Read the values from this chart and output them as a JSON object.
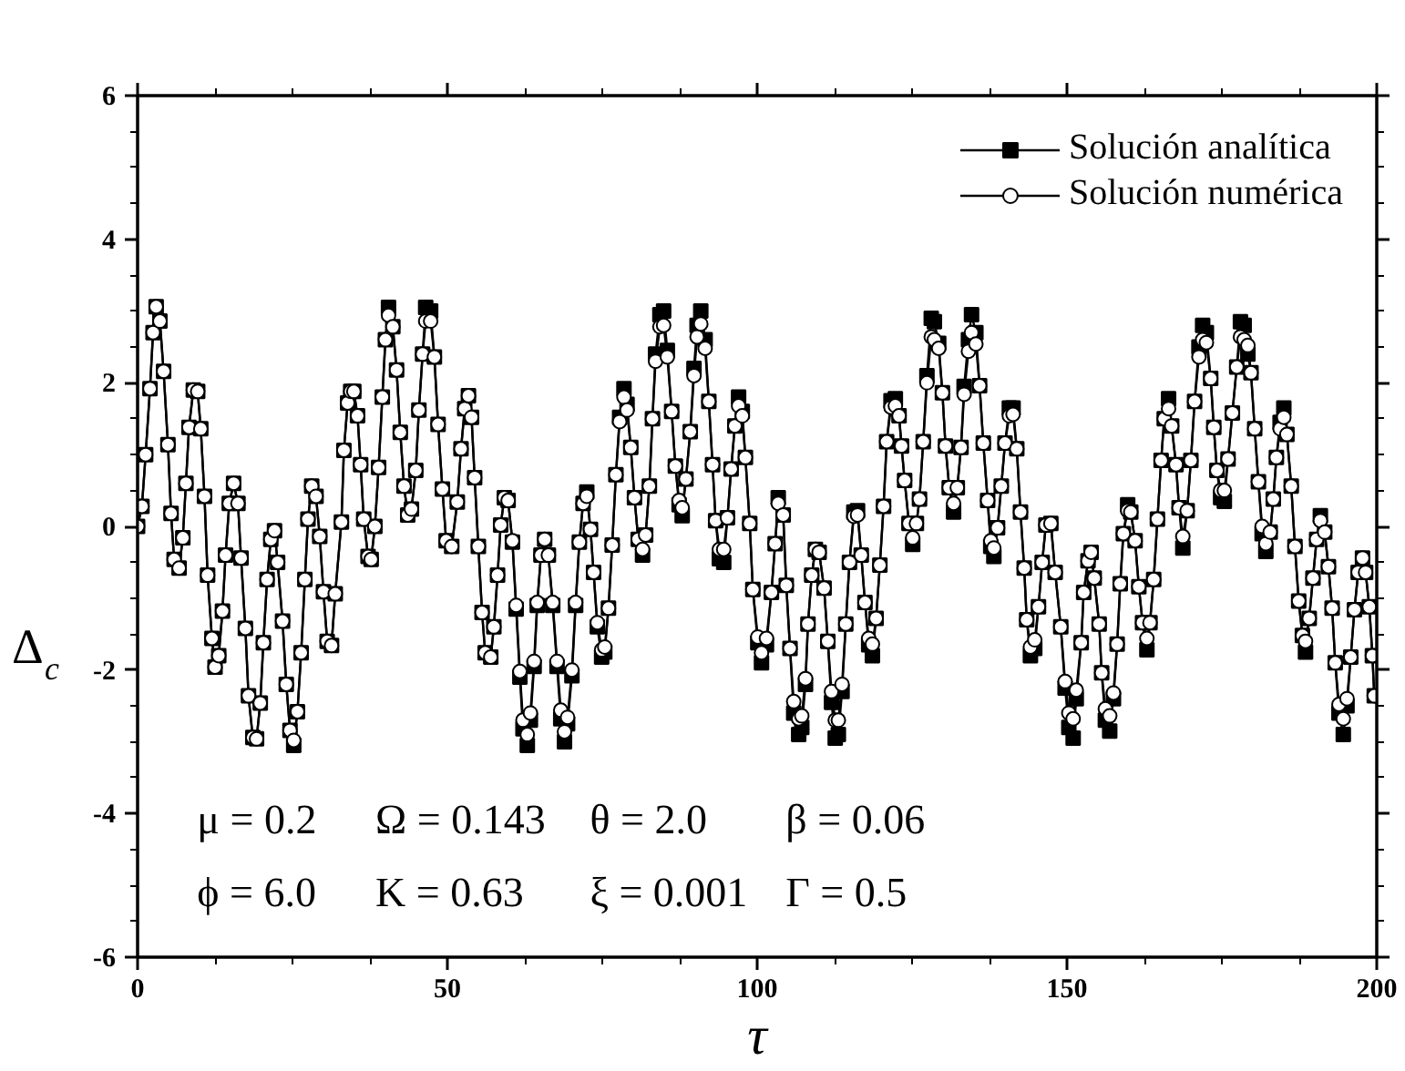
{
  "chart_data": {
    "type": "line",
    "xlabel": "τ",
    "ylabel": "Δ$_{c}$",
    "xlim": [
      0,
      200
    ],
    "ylim": [
      -6,
      6
    ],
    "xticks": [
      0,
      {
        "value": 12.5,
        "label": null
      },
      {
        "value": 25,
        "label": null
      },
      {
        "value": 37.5,
        "label": null
      },
      50,
      {
        "value": 62.5,
        "label": null
      },
      {
        "value": 75,
        "label": null
      },
      {
        "value": 87.5,
        "label": null
      },
      100,
      {
        "value": 112.5,
        "label": null
      },
      {
        "value": 125,
        "label": null
      },
      {
        "value": 137.5,
        "label": null
      },
      150,
      {
        "value": 162.5,
        "label": null
      },
      {
        "value": 175,
        "label": null
      },
      {
        "value": 187.5,
        "label": null
      },
      200
    ],
    "yticks": [
      -6,
      {
        "value": -5.5,
        "label": null
      },
      {
        "value": -5,
        "label": null
      },
      {
        "value": -4.5,
        "label": null
      },
      -4,
      {
        "value": -3.5,
        "label": null
      },
      {
        "value": -3,
        "label": null
      },
      {
        "value": -2.5,
        "label": null
      },
      -2,
      {
        "value": -1.5,
        "label": null
      },
      {
        "value": -1,
        "label": null
      },
      {
        "value": -0.5,
        "label": null
      },
      0,
      {
        "value": 0.5,
        "label": null
      },
      {
        "value": 1,
        "label": null
      },
      {
        "value": 1.5,
        "label": null
      },
      2,
      {
        "value": 2.5,
        "label": null
      },
      {
        "value": 3,
        "label": null
      },
      {
        "value": 3.5,
        "label": null
      },
      4,
      {
        "value": 4.5,
        "label": null
      },
      {
        "value": 5,
        "label": null
      },
      {
        "value": 5.5,
        "label": null
      },
      6
    ],
    "grid": false,
    "legend": "top right",
    "line_style": "solid",
    "annotations": [
      "μ = 0.2",
      "Ω = 0.143",
      "θ = 2.0",
      "β = 0.06",
      "ϕ = 6.0",
      "K = 0.63",
      "ξ = 0.001",
      "Γ = 0.5"
    ],
    "x": [
      0,
      0.7,
      1.3,
      2.0,
      2.5,
      3.0,
      3.6,
      4.2,
      4.9,
      5.4,
      5.9,
      6.7,
      7.3,
      7.8,
      8.3,
      9.0,
      9.7,
      10.2,
      10.8,
      11.3,
      12.0,
      12.5,
      13.1,
      13.7,
      14.2,
      14.8,
      15.5,
      16.2,
      16.7,
      17.4,
      17.9,
      18.6,
      19.2,
      19.8,
      20.3,
      20.9,
      21.5,
      22.1,
      22.6,
      23.4,
      24.0,
      24.6,
      25.2,
      25.8,
      26.4,
      27.0,
      27.5,
      28.1,
      28.8,
      29.4,
      30.0,
      30.6,
      31.3,
      31.9,
      32.9,
      33.3,
      33.9,
      34.4,
      34.9,
      35.5,
      36.0,
      36.5,
      37.2,
      37.7,
      38.3,
      38.9,
      39.5,
      40.0,
      40.5,
      41.2,
      41.8,
      42.4,
      43.0,
      43.6,
      44.2,
      44.9,
      45.4,
      46.0,
      46.5,
      47.3,
      47.9,
      48.5,
      49.2,
      49.8,
      50.7,
      51.6,
      52.2,
      52.8,
      53.4,
      53.9,
      54.4,
      55.0,
      55.6,
      56.1,
      57.0,
      57.5,
      58.1,
      58.6,
      59.2,
      59.8,
      60.5,
      61.1,
      61.7,
      62.2,
      62.9,
      63.4,
      64.0,
      64.5,
      65.1,
      65.7,
      66.3,
      67.0,
      67.7,
      68.3,
      68.9,
      69.4,
      70.1,
      70.7,
      71.3,
      71.9,
      72.5,
      73.1,
      73.6,
      74.2,
      74.9,
      75.4,
      76.0,
      76.6,
      77.2,
      77.8,
      78.5,
      79.0,
      79.6,
      80.2,
      80.8,
      81.5,
      82.0,
      82.6,
      83.1,
      83.6,
      84.3,
      84.9,
      85.5,
      86.2,
      86.8,
      87.4,
      87.9,
      88.5,
      89.2,
      89.8,
      90.3,
      90.9,
      91.6,
      92.2,
      92.8,
      93.3,
      93.9,
      94.6,
      95.2,
      95.8,
      96.4,
      97.0,
      97.6,
      98.1,
      98.8,
      99.3,
      100.1,
      100.7,
      101.5,
      102.3,
      102.9,
      103.4,
      104.2,
      104.7,
      105.3,
      105.9,
      106.7,
      107.2,
      107.8,
      108.2,
      108.8,
      109.4,
      110.0,
      110.8,
      111.4,
      112.0,
      112.6,
      113.1,
      113.7,
      114.3,
      114.9,
      115.6,
      116.2,
      116.8,
      117.4,
      118.0,
      118.6,
      119.2,
      119.8,
      120.4,
      120.9,
      121.6,
      122.3,
      122.9,
      123.3,
      123.8,
      124.5,
      125.1,
      125.7,
      126.2,
      126.8,
      127.4,
      128.1,
      128.6,
      129.3,
      129.9,
      130.4,
      131.0,
      131.7,
      132.3,
      132.9,
      133.4,
      134.1,
      134.6,
      135.3,
      135.9,
      136.5,
      137.2,
      137.7,
      138.2,
      138.8,
      139.4,
      140.0,
      140.7,
      141.3,
      141.9,
      142.5,
      143.1,
      143.5,
      144.1,
      144.8,
      145.4,
      146.0,
      146.6,
      147.4,
      148.1,
      149.0,
      149.7,
      150.3,
      151.0,
      151.5,
      152.3,
      152.7,
      153.4,
      153.9,
      154.4,
      155.2,
      155.6,
      156.2,
      156.9,
      157.5,
      158.1,
      158.6,
      159.1,
      159.8,
      160.3,
      161.0,
      161.6,
      162.2,
      162.9,
      163.4,
      164.0,
      164.6,
      165.2,
      165.7,
      166.4,
      166.9,
      167.6,
      168.1,
      168.7,
      169.4,
      170.0,
      170.6,
      171.3,
      171.9,
      172.5,
      173.2,
      173.7,
      174.2,
      174.8,
      175.4,
      176.0,
      176.7,
      177.4,
      178.0,
      178.6,
      179.2,
      179.7,
      180.3,
      180.9,
      181.5,
      182.1,
      182.8,
      183.3,
      183.8,
      184.4,
      185.0,
      185.5,
      186.2,
      186.8,
      187.4,
      188.0,
      188.5,
      189.1,
      189.7,
      190.3,
      190.9,
      191.6,
      192.2,
      192.8,
      193.3,
      193.9,
      194.6,
      195.2,
      195.8,
      196.4,
      197.0,
      197.7,
      198.2,
      198.8,
      199.3,
      199.6
    ],
    "series": [
      {
        "name": "Solución analítica",
        "color": "#000000",
        "marker": "square",
        "values": [
          0,
          0.28,
          1.0,
          1.92,
          2.7,
          3.06,
          2.86,
          2.16,
          1.14,
          0.18,
          -0.46,
          -0.58,
          -0.16,
          0.6,
          1.38,
          1.9,
          1.88,
          1.36,
          0.42,
          -0.68,
          -1.56,
          -1.96,
          -1.8,
          -1.18,
          -0.4,
          0.32,
          0.6,
          0.32,
          -0.44,
          -1.42,
          -2.36,
          -2.94,
          -2.96,
          -2.46,
          -1.62,
          -0.74,
          -0.18,
          -0.06,
          -0.5,
          -1.32,
          -2.2,
          -2.84,
          -3.05,
          -2.58,
          -1.76,
          -0.74,
          0.1,
          0.56,
          0.42,
          -0.14,
          -0.91,
          -1.6,
          -1.66,
          -0.94,
          0.06,
          1.06,
          1.72,
          1.88,
          1.88,
          1.54,
          0.86,
          0.1,
          -0.42,
          -0.46,
          0.0,
          0.82,
          1.8,
          2.6,
          3.05,
          2.78,
          2.18,
          1.31,
          0.56,
          0.16,
          0.24,
          0.78,
          1.62,
          2.4,
          3.05,
          3.0,
          2.36,
          1.42,
          0.52,
          -0.2,
          -0.28,
          0.34,
          1.08,
          1.64,
          1.82,
          1.52,
          0.68,
          -0.28,
          -1.2,
          -1.76,
          -1.82,
          -1.4,
          -0.68,
          0.02,
          0.4,
          0.36,
          -0.22,
          -1.15,
          -2.1,
          -2.82,
          -3.05,
          -2.7,
          -1.95,
          -1.1,
          -0.4,
          -0.18,
          -0.4,
          -1.1,
          -1.95,
          -2.68,
          -3.0,
          -2.75,
          -2.08,
          -1.1,
          -0.22,
          0.32,
          0.48,
          -0.04,
          -0.64,
          -1.4,
          -1.82,
          -1.75,
          -1.14,
          -0.26,
          0.72,
          1.52,
          1.92,
          1.7,
          1.1,
          0.4,
          -0.18,
          -0.4,
          -0.12,
          0.56,
          1.5,
          2.4,
          2.95,
          3.0,
          2.45,
          1.6,
          0.84,
          0.3,
          0.15,
          0.66,
          1.32,
          2.2,
          2.8,
          3.0,
          2.6,
          1.74,
          0.86,
          0.08,
          -0.45,
          -0.5,
          0.12,
          0.8,
          1.4,
          1.8,
          1.6,
          0.96,
          0.04,
          -0.88,
          -1.62,
          -1.9,
          -1.65,
          -0.92,
          -0.24,
          0.4,
          0.16,
          -0.82,
          -1.7,
          -2.6,
          -2.9,
          -2.8,
          -2.2,
          -1.36,
          -0.68,
          -0.32,
          -0.36,
          -0.86,
          -1.6,
          -2.45,
          -2.95,
          -2.9,
          -2.3,
          -1.36,
          -0.5,
          0.2,
          0.22,
          -0.4,
          -1.06,
          -1.65,
          -1.8,
          -1.28,
          -0.54,
          0.28,
          1.18,
          1.75,
          1.78,
          1.54,
          1.12,
          0.64,
          0.04,
          -0.25,
          0.04,
          0.38,
          1.18,
          2.1,
          2.9,
          2.85,
          2.55,
          1.86,
          1.12,
          0.54,
          0.2,
          0.54,
          1.1,
          1.95,
          2.6,
          2.95,
          2.7,
          1.96,
          1.16,
          0.36,
          -0.28,
          -0.42,
          -0.02,
          0.56,
          1.16,
          1.65,
          1.65,
          1.08,
          0.2,
          -0.58,
          -1.3,
          -1.8,
          -1.7,
          -1.12,
          -0.5,
          0.02,
          0.04,
          -0.64,
          -1.4,
          -2.25,
          -2.8,
          -2.95,
          -2.4,
          -1.62,
          -0.92,
          -0.48,
          -0.36,
          -0.72,
          -1.36,
          -2.04,
          -2.7,
          -2.85,
          -2.4,
          -1.64,
          -0.8,
          -0.1,
          0.3,
          0.2,
          -0.2,
          -0.84,
          -1.34,
          -1.72,
          -1.34,
          -0.74,
          0.1,
          0.92,
          1.5,
          1.78,
          1.4,
          0.86,
          0.26,
          -0.3,
          0.22,
          0.92,
          1.74,
          2.5,
          2.8,
          2.7,
          2.06,
          1.38,
          0.78,
          0.4,
          0.35,
          0.94,
          1.58,
          2.22,
          2.85,
          2.8,
          2.4,
          2.14,
          1.36,
          0.62,
          -0.1,
          -0.35,
          -0.08,
          0.38,
          0.96,
          1.45,
          1.65,
          1.28,
          0.56,
          -0.28,
          -1.04,
          -1.52,
          -1.75,
          -1.28,
          -0.72,
          -0.18,
          0.15,
          -0.08,
          -0.56,
          -1.14,
          -1.9,
          -2.6,
          -2.9,
          -2.5,
          -1.82,
          -1.16,
          -0.64,
          -0.44,
          -0.64,
          -1.12,
          -1.8,
          -2.36
        ]
      },
      {
        "name": "Solución numérica",
        "color": "#000000",
        "marker": "circle",
        "values": [
          0,
          0.28,
          1.0,
          1.92,
          2.7,
          3.06,
          2.86,
          2.16,
          1.14,
          0.18,
          -0.46,
          -0.58,
          -0.16,
          0.6,
          1.38,
          1.9,
          1.88,
          1.36,
          0.42,
          -0.68,
          -1.56,
          -1.96,
          -1.8,
          -1.18,
          -0.4,
          0.32,
          0.6,
          0.32,
          -0.44,
          -1.42,
          -2.36,
          -2.94,
          -2.96,
          -2.46,
          -1.62,
          -0.74,
          -0.18,
          -0.06,
          -0.5,
          -1.32,
          -2.2,
          -2.84,
          -2.98,
          -2.58,
          -1.76,
          -0.74,
          0.1,
          0.56,
          0.42,
          -0.14,
          -0.91,
          -1.6,
          -1.66,
          -0.94,
          0.06,
          1.06,
          1.72,
          1.88,
          1.88,
          1.54,
          0.86,
          0.1,
          -0.42,
          -0.46,
          0.0,
          0.82,
          1.8,
          2.6,
          2.94,
          2.78,
          2.18,
          1.31,
          0.56,
          0.16,
          0.24,
          0.78,
          1.62,
          2.4,
          2.86,
          2.86,
          2.36,
          1.42,
          0.52,
          -0.2,
          -0.28,
          0.34,
          1.08,
          1.64,
          1.82,
          1.52,
          0.68,
          -0.28,
          -1.2,
          -1.76,
          -1.82,
          -1.4,
          -0.68,
          0.02,
          0.4,
          0.36,
          -0.2,
          -1.1,
          -2.02,
          -2.7,
          -2.9,
          -2.6,
          -1.88,
          -1.06,
          -0.4,
          -0.18,
          -0.4,
          -1.06,
          -1.88,
          -2.56,
          -2.86,
          -2.66,
          -2.0,
          -1.06,
          -0.22,
          0.32,
          0.42,
          -0.04,
          -0.64,
          -1.34,
          -1.72,
          -1.68,
          -1.14,
          -0.26,
          0.72,
          1.46,
          1.8,
          1.62,
          1.1,
          0.4,
          -0.18,
          -0.32,
          -0.12,
          0.56,
          1.5,
          2.3,
          2.78,
          2.8,
          2.36,
          1.6,
          0.84,
          0.36,
          0.26,
          0.66,
          1.32,
          2.1,
          2.64,
          2.82,
          2.48,
          1.74,
          0.86,
          0.08,
          -0.32,
          -0.32,
          0.12,
          0.8,
          1.4,
          1.68,
          1.54,
          0.96,
          0.04,
          -0.88,
          -1.54,
          -1.76,
          -1.56,
          -0.92,
          -0.24,
          0.32,
          0.16,
          -0.82,
          -1.7,
          -2.44,
          -2.68,
          -2.64,
          -2.12,
          -1.36,
          -0.68,
          -0.32,
          -0.36,
          -0.86,
          -1.6,
          -2.3,
          -2.7,
          -2.7,
          -2.2,
          -1.36,
          -0.5,
          0.14,
          0.16,
          -0.4,
          -1.06,
          -1.56,
          -1.64,
          -1.28,
          -0.54,
          0.28,
          1.18,
          1.66,
          1.68,
          1.54,
          1.12,
          0.64,
          0.04,
          -0.16,
          0.04,
          0.38,
          1.18,
          2.0,
          2.64,
          2.6,
          2.48,
          1.86,
          1.12,
          0.54,
          0.32,
          0.54,
          1.1,
          1.84,
          2.44,
          2.7,
          2.54,
          1.96,
          1.16,
          0.36,
          -0.2,
          -0.3,
          -0.02,
          0.56,
          1.16,
          1.54,
          1.56,
          1.08,
          0.2,
          -0.58,
          -1.3,
          -1.68,
          -1.58,
          -1.12,
          -0.5,
          0.02,
          0.04,
          -0.64,
          -1.4,
          -2.16,
          -2.6,
          -2.68,
          -2.28,
          -1.62,
          -0.92,
          -0.48,
          -0.36,
          -0.72,
          -1.36,
          -2.04,
          -2.54,
          -2.64,
          -2.32,
          -1.64,
          -0.8,
          -0.1,
          0.22,
          0.2,
          -0.2,
          -0.84,
          -1.34,
          -1.56,
          -1.34,
          -0.74,
          0.1,
          0.92,
          1.5,
          1.64,
          1.4,
          0.86,
          0.26,
          -0.14,
          0.22,
          0.92,
          1.74,
          2.36,
          2.6,
          2.56,
          2.06,
          1.38,
          0.78,
          0.5,
          0.5,
          0.94,
          1.58,
          2.22,
          2.64,
          2.6,
          2.52,
          2.14,
          1.36,
          0.62,
          0.0,
          -0.24,
          -0.08,
          0.38,
          0.96,
          1.36,
          1.52,
          1.28,
          0.56,
          -0.28,
          -1.04,
          -1.52,
          -1.6,
          -1.28,
          -0.72,
          -0.18,
          0.08,
          -0.08,
          -0.56,
          -1.14,
          -1.9,
          -2.48,
          -2.68,
          -2.4,
          -1.82,
          -1.16,
          -0.64,
          -0.44,
          -0.64,
          -1.12,
          -1.8,
          -2.36
        ]
      }
    ]
  }
}
